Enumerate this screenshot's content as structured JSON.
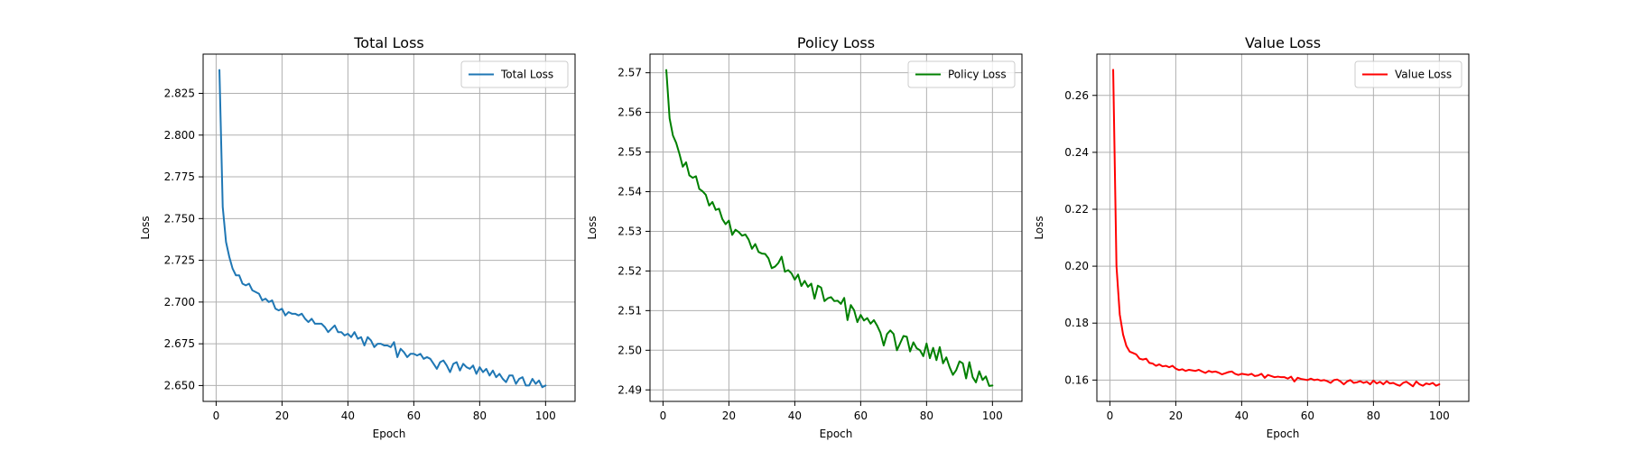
{
  "chart_data": [
    {
      "type": "line",
      "title": "Total Loss",
      "xlabel": "Epoch",
      "ylabel": "Loss",
      "xlim": [
        -3.95,
        108.95
      ],
      "ylim": [
        2.6405,
        2.8485
      ],
      "xticks": [
        0,
        20,
        40,
        60,
        80,
        100
      ],
      "yticks": [
        2.65,
        2.675,
        2.7,
        2.725,
        2.75,
        2.775,
        2.8,
        2.825
      ],
      "ytick_labels": [
        "2.650",
        "2.675",
        "2.700",
        "2.725",
        "2.750",
        "2.775",
        "2.800",
        "2.825"
      ],
      "grid": true,
      "legend_position": "upper-right",
      "series": [
        {
          "name": "Total Loss",
          "color": "#1f77b4",
          "x": [
            1,
            2,
            3,
            4,
            5,
            6,
            7,
            8,
            9,
            10,
            11,
            12,
            13,
            14,
            15,
            16,
            17,
            18,
            19,
            20,
            21,
            22,
            23,
            24,
            25,
            26,
            27,
            28,
            29,
            30,
            31,
            32,
            33,
            34,
            35,
            36,
            37,
            38,
            39,
            40,
            41,
            42,
            43,
            44,
            45,
            46,
            47,
            48,
            49,
            50,
            51,
            52,
            53,
            54,
            55,
            56,
            57,
            58,
            59,
            60,
            61,
            62,
            63,
            64,
            65,
            66,
            67,
            68,
            69,
            70,
            71,
            72,
            73,
            74,
            75,
            76,
            77,
            78,
            79,
            80,
            81,
            82,
            83,
            84,
            85,
            86,
            87,
            88,
            89,
            90,
            91,
            92,
            93,
            94,
            95,
            96,
            97,
            98,
            99,
            100
          ],
          "values": [
            2.839,
            2.757,
            2.736,
            2.727,
            2.72,
            2.716,
            2.716,
            2.711,
            2.71,
            2.711,
            2.707,
            2.706,
            2.705,
            2.701,
            2.702,
            2.7,
            2.701,
            2.696,
            2.695,
            2.696,
            2.692,
            2.694,
            2.693,
            2.693,
            2.692,
            2.693,
            2.69,
            2.688,
            2.69,
            2.687,
            2.687,
            2.687,
            2.685,
            2.682,
            2.684,
            2.686,
            2.682,
            2.682,
            2.68,
            2.681,
            2.679,
            2.682,
            2.678,
            2.679,
            2.674,
            2.679,
            2.677,
            2.673,
            2.675,
            2.675,
            2.674,
            2.674,
            2.673,
            2.676,
            2.667,
            2.672,
            2.67,
            2.667,
            2.669,
            2.669,
            2.668,
            2.669,
            2.666,
            2.667,
            2.666,
            2.663,
            2.66,
            2.664,
            2.665,
            2.662,
            2.658,
            2.663,
            2.664,
            2.659,
            2.663,
            2.661,
            2.66,
            2.662,
            2.657,
            2.661,
            2.658,
            2.66,
            2.656,
            2.659,
            2.655,
            2.657,
            2.654,
            2.652,
            2.656,
            2.656,
            2.651,
            2.654,
            2.655,
            2.65,
            2.65,
            2.654,
            2.651,
            2.653,
            2.649,
            2.65
          ]
        }
      ]
    },
    {
      "type": "line",
      "title": "Policy Loss",
      "xlabel": "Epoch",
      "ylabel": "Loss",
      "xlim": [
        -3.95,
        108.95
      ],
      "ylim": [
        2.4871,
        2.5747
      ],
      "xticks": [
        0,
        20,
        40,
        60,
        80,
        100
      ],
      "yticks": [
        2.49,
        2.5,
        2.51,
        2.52,
        2.53,
        2.54,
        2.55,
        2.56,
        2.57
      ],
      "ytick_labels": [
        "2.49",
        "2.50",
        "2.51",
        "2.52",
        "2.53",
        "2.54",
        "2.55",
        "2.56",
        "2.57"
      ],
      "grid": true,
      "legend_position": "upper-right",
      "series": [
        {
          "name": "Policy Loss",
          "color": "#008000",
          "x": [
            1,
            2,
            3,
            4,
            5,
            6,
            7,
            8,
            9,
            10,
            11,
            12,
            13,
            14,
            15,
            16,
            17,
            18,
            19,
            20,
            21,
            22,
            23,
            24,
            25,
            26,
            27,
            28,
            29,
            30,
            31,
            32,
            33,
            34,
            35,
            36,
            37,
            38,
            39,
            40,
            41,
            42,
            43,
            44,
            45,
            46,
            47,
            48,
            49,
            50,
            51,
            52,
            53,
            54,
            55,
            56,
            57,
            58,
            59,
            60,
            61,
            62,
            63,
            64,
            65,
            66,
            67,
            68,
            69,
            70,
            71,
            72,
            73,
            74,
            75,
            76,
            77,
            78,
            79,
            80,
            81,
            82,
            83,
            84,
            85,
            86,
            87,
            88,
            89,
            90,
            91,
            92,
            93,
            94,
            95,
            96,
            97,
            98,
            99,
            100
          ],
          "values": [
            2.5707,
            2.5585,
            2.5542,
            2.5523,
            2.5495,
            2.5463,
            2.5474,
            2.5441,
            2.5435,
            2.5439,
            2.5407,
            2.5401,
            2.5392,
            2.5365,
            2.5374,
            2.5354,
            2.5357,
            2.5331,
            2.5318,
            2.5327,
            2.5291,
            2.5304,
            2.5298,
            2.5289,
            2.5292,
            2.5279,
            2.5256,
            2.5268,
            2.5248,
            2.5244,
            2.5243,
            2.5232,
            2.5207,
            2.5211,
            2.522,
            2.5236,
            2.5198,
            2.5202,
            2.5194,
            2.5178,
            2.5191,
            2.5162,
            2.5175,
            2.516,
            2.5168,
            2.513,
            2.5163,
            2.5158,
            2.5124,
            2.5131,
            2.5134,
            2.5124,
            2.5125,
            2.5117,
            2.5132,
            2.5076,
            2.5114,
            2.5101,
            2.5071,
            2.5089,
            2.5075,
            2.5081,
            2.5067,
            2.5076,
            2.5062,
            2.5044,
            2.5012,
            2.5041,
            2.505,
            2.5041,
            2.5,
            2.5018,
            2.5036,
            2.5034,
            2.4997,
            2.502,
            2.5005,
            2.5,
            2.4985,
            2.5017,
            2.498,
            2.5006,
            2.4975,
            2.5008,
            2.4967,
            2.4982,
            2.4957,
            2.4938,
            2.495,
            2.4972,
            2.4967,
            2.4929,
            2.497,
            2.4932,
            2.4919,
            2.4947,
            2.4925,
            2.4934,
            2.491,
            2.4911
          ]
        }
      ]
    },
    {
      "type": "line",
      "title": "Value Loss",
      "xlabel": "Epoch",
      "ylabel": "Loss",
      "xlim": [
        -3.95,
        108.95
      ],
      "ylim": [
        0.1525,
        0.2745
      ],
      "xticks": [
        0,
        20,
        40,
        60,
        80,
        100
      ],
      "yticks": [
        0.16,
        0.18,
        0.2,
        0.22,
        0.24,
        0.26
      ],
      "ytick_labels": [
        "0.16",
        "0.18",
        "0.20",
        "0.22",
        "0.24",
        "0.26"
      ],
      "grid": true,
      "legend_position": "upper-right",
      "series": [
        {
          "name": "Value Loss",
          "color": "#ff0000",
          "x": [
            1,
            2,
            3,
            4,
            5,
            6,
            7,
            8,
            9,
            10,
            11,
            12,
            13,
            14,
            15,
            16,
            17,
            18,
            19,
            20,
            21,
            22,
            23,
            24,
            25,
            26,
            27,
            28,
            29,
            30,
            31,
            32,
            33,
            34,
            35,
            36,
            37,
            38,
            39,
            40,
            41,
            42,
            43,
            44,
            45,
            46,
            47,
            48,
            49,
            50,
            51,
            52,
            53,
            54,
            55,
            56,
            57,
            58,
            59,
            60,
            61,
            62,
            63,
            64,
            65,
            66,
            67,
            68,
            69,
            70,
            71,
            72,
            73,
            74,
            75,
            76,
            77,
            78,
            79,
            80,
            81,
            82,
            83,
            84,
            85,
            86,
            87,
            88,
            89,
            90,
            91,
            92,
            93,
            94,
            95,
            96,
            97,
            98,
            99,
            100
          ],
          "values": [
            0.269,
            0.2,
            0.183,
            0.176,
            0.172,
            0.17,
            0.1695,
            0.169,
            0.1675,
            0.1672,
            0.1675,
            0.166,
            0.1658,
            0.165,
            0.1655,
            0.1648,
            0.165,
            0.1645,
            0.165,
            0.164,
            0.1635,
            0.1638,
            0.1632,
            0.1636,
            0.1634,
            0.1632,
            0.1636,
            0.163,
            0.1625,
            0.1632,
            0.1628,
            0.163,
            0.1626,
            0.162,
            0.1624,
            0.1628,
            0.163,
            0.1622,
            0.1618,
            0.1622,
            0.162,
            0.1618,
            0.1622,
            0.1614,
            0.1616,
            0.1622,
            0.1608,
            0.1618,
            0.1614,
            0.161,
            0.1612,
            0.161,
            0.161,
            0.1605,
            0.1612,
            0.1595,
            0.1608,
            0.1604,
            0.1602,
            0.16,
            0.1605,
            0.16,
            0.1602,
            0.1598,
            0.16,
            0.1596,
            0.159,
            0.16,
            0.1602,
            0.1595,
            0.1585,
            0.1595,
            0.16,
            0.159,
            0.1592,
            0.1596,
            0.159,
            0.1594,
            0.1585,
            0.1598,
            0.1588,
            0.1594,
            0.1585,
            0.1596,
            0.1588,
            0.159,
            0.1584,
            0.158,
            0.159,
            0.1594,
            0.1586,
            0.1578,
            0.1595,
            0.1585,
            0.158,
            0.1588,
            0.1585,
            0.159,
            0.158,
            0.1585
          ]
        }
      ]
    }
  ]
}
